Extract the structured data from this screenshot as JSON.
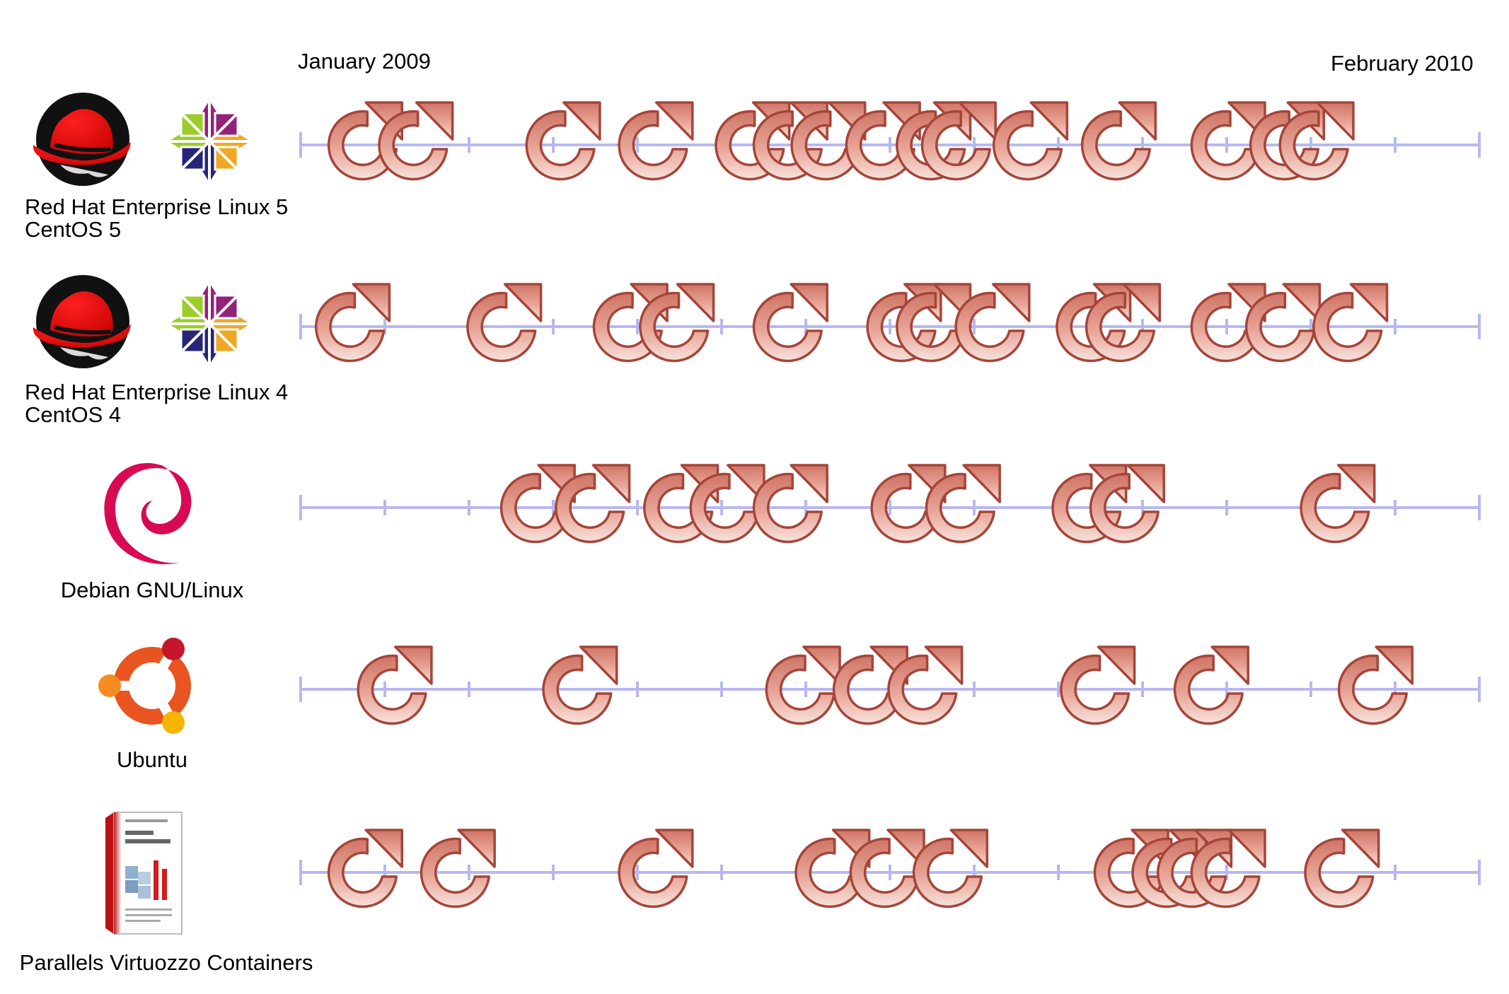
{
  "timeline": {
    "start_label": "January 2009",
    "end_label": "February 2010",
    "ticks_per_row": 14,
    "accent_color": "#b8b8f0",
    "update_icon": "refresh-arrow-icon",
    "update_icon_color": "#d98a7c"
  },
  "rows": [
    {
      "line1": "Red Hat Enterprise Linux 5",
      "line2": "CentOS 5",
      "logos": [
        "redhat-logo-icon",
        "centos-logo-icon"
      ],
      "updates": [
        0.75,
        1.35,
        3.1,
        4.2,
        5.35,
        5.8,
        6.25,
        6.9,
        7.5,
        7.8,
        8.65,
        9.7,
        11.0,
        11.7,
        12.05
      ]
    },
    {
      "line1": "Red Hat Enterprise Linux 4",
      "line2": "CentOS 4",
      "logos": [
        "redhat-logo-icon",
        "centos-logo-icon"
      ],
      "updates": [
        0.6,
        2.4,
        3.9,
        4.45,
        5.8,
        7.15,
        7.5,
        8.2,
        9.4,
        9.75,
        11.0,
        11.65,
        12.45
      ]
    },
    {
      "line1": "Debian GNU/Linux",
      "line2": "",
      "logos": [
        "debian-logo-icon"
      ],
      "updates": [
        2.8,
        3.45,
        4.5,
        5.05,
        5.8,
        7.2,
        7.85,
        9.35,
        9.8,
        12.3
      ]
    },
    {
      "line1": "Ubuntu",
      "line2": "",
      "logos": [
        "ubuntu-logo-icon"
      ],
      "updates": [
        1.1,
        3.3,
        5.95,
        6.75,
        7.4,
        9.45,
        10.8,
        12.75
      ]
    },
    {
      "line1": "Parallels Virtuozzo Containers",
      "line2": "",
      "logos": [
        "parallels-box-logo-icon"
      ],
      "updates": [
        0.75,
        1.85,
        4.2,
        6.3,
        6.95,
        7.7,
        9.85,
        10.3,
        10.6,
        11.0,
        12.35
      ]
    }
  ]
}
